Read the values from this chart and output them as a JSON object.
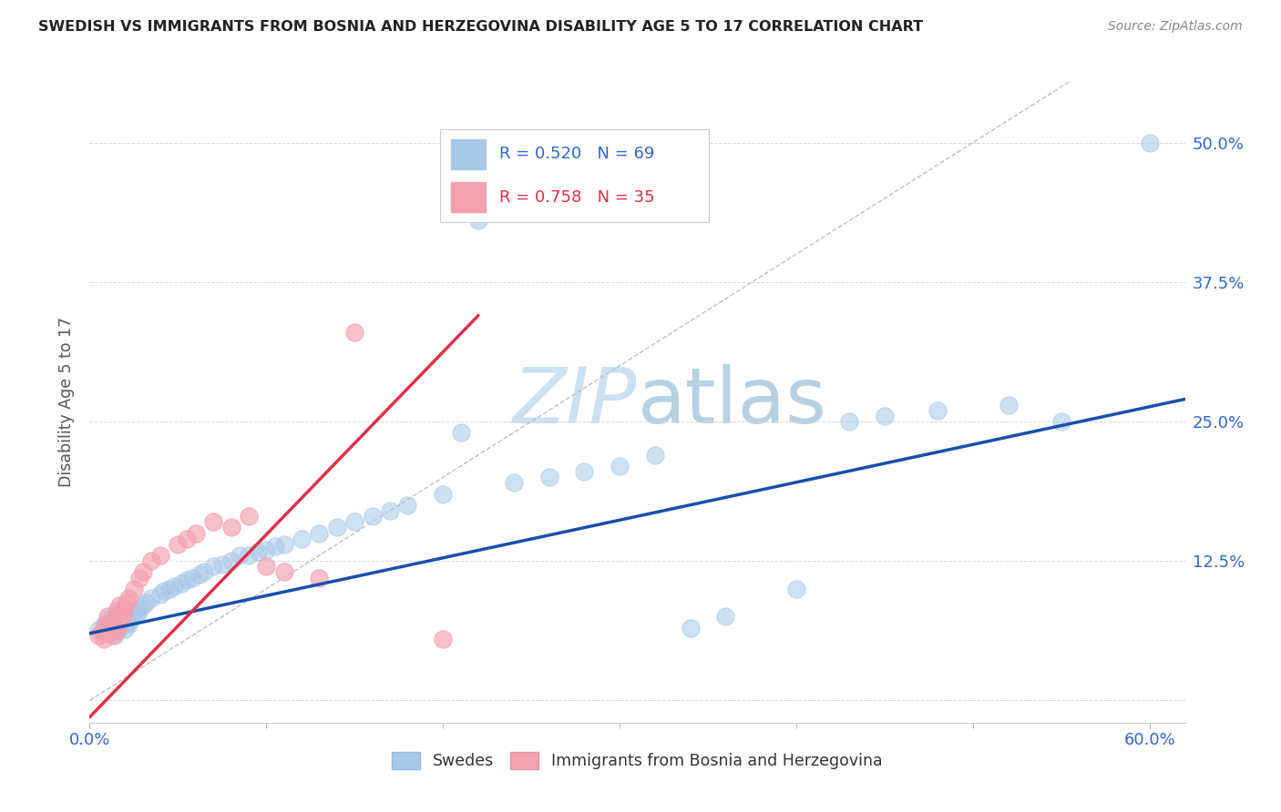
{
  "title": "SWEDISH VS IMMIGRANTS FROM BOSNIA AND HERZEGOVINA DISABILITY AGE 5 TO 17 CORRELATION CHART",
  "source": "Source: ZipAtlas.com",
  "ylabel": "Disability Age 5 to 17",
  "xlim": [
    0.0,
    0.62
  ],
  "ylim": [
    -0.02,
    0.555
  ],
  "ytick_vals": [
    0.0,
    0.125,
    0.25,
    0.375,
    0.5
  ],
  "ytick_labels": [
    "",
    "12.5%",
    "25.0%",
    "37.5%",
    "50.0%"
  ],
  "xtick_vals": [
    0.0,
    0.1,
    0.2,
    0.3,
    0.4,
    0.5,
    0.6
  ],
  "xtick_labels": [
    "0.0%",
    "",
    "",
    "",
    "",
    "",
    "60.0%"
  ],
  "swedes_R": 0.52,
  "swedes_N": 69,
  "bosnia_R": 0.758,
  "bosnia_N": 35,
  "blue_scatter_face": "#a8c8e8",
  "blue_scatter_edge": "#a8c8e8",
  "pink_scatter_face": "#f4a0b0",
  "pink_scatter_edge": "#f4a0b0",
  "blue_line_color": "#1a4faa",
  "pink_line_color": "#e0304a",
  "axis_color": "#3366cc",
  "grid_color": "#d8d8d8",
  "watermark_color": "#ddeeff",
  "legend_blue_patch": "#a8c8e8",
  "legend_pink_patch": "#f4a0b0",
  "swedes_x": [
    0.005,
    0.008,
    0.01,
    0.01,
    0.012,
    0.013,
    0.014,
    0.015,
    0.015,
    0.016,
    0.017,
    0.018,
    0.018,
    0.019,
    0.02,
    0.02,
    0.021,
    0.022,
    0.023,
    0.024,
    0.025,
    0.026,
    0.027,
    0.028,
    0.03,
    0.032,
    0.035,
    0.04,
    0.042,
    0.045,
    0.048,
    0.052,
    0.055,
    0.058,
    0.062,
    0.065,
    0.07,
    0.075,
    0.08,
    0.085,
    0.09,
    0.095,
    0.1,
    0.105,
    0.11,
    0.12,
    0.13,
    0.14,
    0.15,
    0.16,
    0.17,
    0.18,
    0.2,
    0.21,
    0.22,
    0.24,
    0.26,
    0.28,
    0.3,
    0.32,
    0.34,
    0.36,
    0.4,
    0.43,
    0.45,
    0.48,
    0.52,
    0.55,
    0.6
  ],
  "swedes_y": [
    0.063,
    0.068,
    0.06,
    0.072,
    0.065,
    0.07,
    0.058,
    0.067,
    0.075,
    0.062,
    0.071,
    0.066,
    0.073,
    0.069,
    0.064,
    0.078,
    0.07,
    0.068,
    0.072,
    0.075,
    0.08,
    0.076,
    0.078,
    0.083,
    0.085,
    0.088,
    0.092,
    0.095,
    0.098,
    0.1,
    0.102,
    0.105,
    0.108,
    0.11,
    0.113,
    0.115,
    0.12,
    0.122,
    0.125,
    0.13,
    0.13,
    0.133,
    0.135,
    0.138,
    0.14,
    0.145,
    0.15,
    0.155,
    0.16,
    0.165,
    0.17,
    0.175,
    0.185,
    0.24,
    0.43,
    0.195,
    0.2,
    0.205,
    0.21,
    0.22,
    0.065,
    0.075,
    0.1,
    0.25,
    0.255,
    0.26,
    0.265,
    0.25,
    0.5
  ],
  "bosnia_x": [
    0.005,
    0.007,
    0.008,
    0.009,
    0.01,
    0.01,
    0.011,
    0.012,
    0.013,
    0.014,
    0.015,
    0.015,
    0.016,
    0.017,
    0.018,
    0.019,
    0.02,
    0.021,
    0.022,
    0.025,
    0.028,
    0.03,
    0.035,
    0.04,
    0.05,
    0.055,
    0.06,
    0.07,
    0.08,
    0.09,
    0.1,
    0.11,
    0.13,
    0.15,
    0.2
  ],
  "bosnia_y": [
    0.058,
    0.062,
    0.055,
    0.068,
    0.06,
    0.075,
    0.065,
    0.07,
    0.058,
    0.072,
    0.063,
    0.08,
    0.067,
    0.085,
    0.078,
    0.074,
    0.082,
    0.088,
    0.092,
    0.1,
    0.11,
    0.115,
    0.125,
    0.13,
    0.14,
    0.145,
    0.15,
    0.16,
    0.155,
    0.165,
    0.12,
    0.115,
    0.11,
    0.33,
    0.055
  ],
  "blue_line_x": [
    0.0,
    0.62
  ],
  "blue_line_y": [
    0.06,
    0.27
  ],
  "pink_line_x": [
    0.0,
    0.22
  ],
  "pink_line_y": [
    -0.015,
    0.345
  ]
}
